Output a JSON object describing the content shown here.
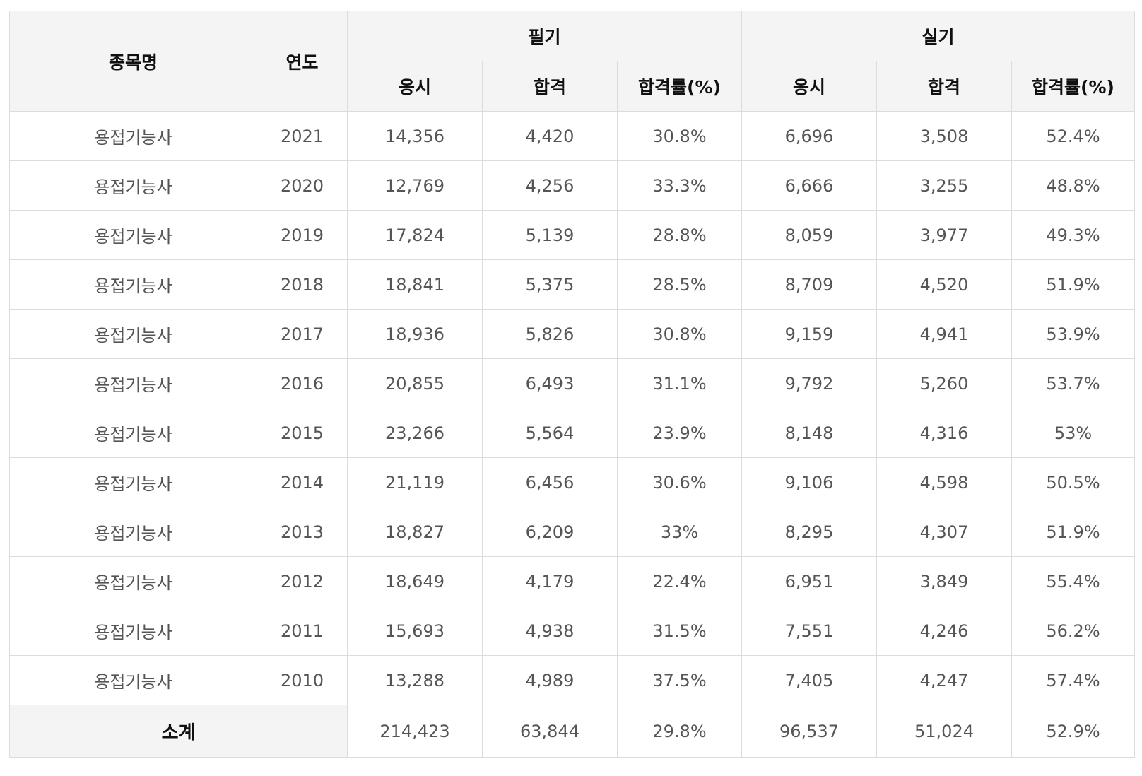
{
  "header": {
    "name": "종목명",
    "year": "연도",
    "written": "필기",
    "practical": "실기",
    "sub": [
      "응시",
      "합격",
      "합격률(%)",
      "응시",
      "합격",
      "합격률(%)"
    ]
  },
  "rows": [
    {
      "name": "용접기능사",
      "year": "2021",
      "w_apply": "14,356",
      "w_pass": "4,420",
      "w_rate": "30.8%",
      "p_apply": "6,696",
      "p_pass": "3,508",
      "p_rate": "52.4%"
    },
    {
      "name": "용접기능사",
      "year": "2020",
      "w_apply": "12,769",
      "w_pass": "4,256",
      "w_rate": "33.3%",
      "p_apply": "6,666",
      "p_pass": "3,255",
      "p_rate": "48.8%"
    },
    {
      "name": "용접기능사",
      "year": "2019",
      "w_apply": "17,824",
      "w_pass": "5,139",
      "w_rate": "28.8%",
      "p_apply": "8,059",
      "p_pass": "3,977",
      "p_rate": "49.3%"
    },
    {
      "name": "용접기능사",
      "year": "2018",
      "w_apply": "18,841",
      "w_pass": "5,375",
      "w_rate": "28.5%",
      "p_apply": "8,709",
      "p_pass": "4,520",
      "p_rate": "51.9%"
    },
    {
      "name": "용접기능사",
      "year": "2017",
      "w_apply": "18,936",
      "w_pass": "5,826",
      "w_rate": "30.8%",
      "p_apply": "9,159",
      "p_pass": "4,941",
      "p_rate": "53.9%"
    },
    {
      "name": "용접기능사",
      "year": "2016",
      "w_apply": "20,855",
      "w_pass": "6,493",
      "w_rate": "31.1%",
      "p_apply": "9,792",
      "p_pass": "5,260",
      "p_rate": "53.7%"
    },
    {
      "name": "용접기능사",
      "year": "2015",
      "w_apply": "23,266",
      "w_pass": "5,564",
      "w_rate": "23.9%",
      "p_apply": "8,148",
      "p_pass": "4,316",
      "p_rate": "53%"
    },
    {
      "name": "용접기능사",
      "year": "2014",
      "w_apply": "21,119",
      "w_pass": "6,456",
      "w_rate": "30.6%",
      "p_apply": "9,106",
      "p_pass": "4,598",
      "p_rate": "50.5%"
    },
    {
      "name": "용접기능사",
      "year": "2013",
      "w_apply": "18,827",
      "w_pass": "6,209",
      "w_rate": "33%",
      "p_apply": "8,295",
      "p_pass": "4,307",
      "p_rate": "51.9%"
    },
    {
      "name": "용접기능사",
      "year": "2012",
      "w_apply": "18,649",
      "w_pass": "4,179",
      "w_rate": "22.4%",
      "p_apply": "6,951",
      "p_pass": "3,849",
      "p_rate": "55.4%"
    },
    {
      "name": "용접기능사",
      "year": "2011",
      "w_apply": "15,693",
      "w_pass": "4,938",
      "w_rate": "31.5%",
      "p_apply": "7,551",
      "p_pass": "4,246",
      "p_rate": "56.2%"
    },
    {
      "name": "용접기능사",
      "year": "2010",
      "w_apply": "13,288",
      "w_pass": "4,989",
      "w_rate": "37.5%",
      "p_apply": "7,405",
      "p_pass": "4,247",
      "p_rate": "57.4%"
    }
  ],
  "total": {
    "label": "소계",
    "w_apply": "214,423",
    "w_pass": "63,844",
    "w_rate": "29.8%",
    "p_apply": "96,537",
    "p_pass": "51,024",
    "p_rate": "52.9%"
  }
}
